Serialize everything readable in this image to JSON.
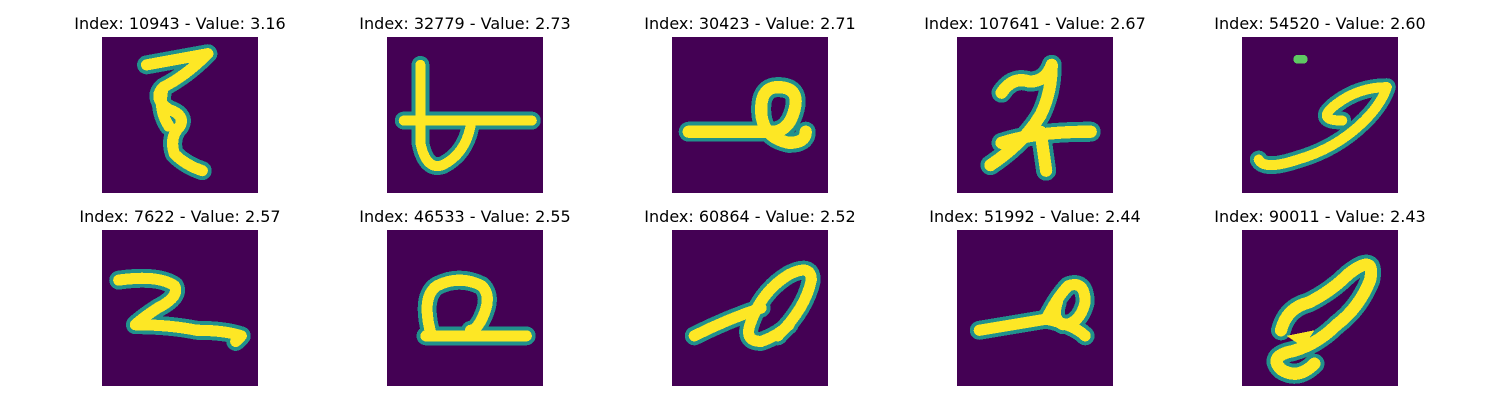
{
  "figure": {
    "background": "#ffffff",
    "image_background": "#440154",
    "stroke_colors": [
      "#21918c",
      "#5ec962",
      "#fde725"
    ],
    "panels": [
      {
        "title": "Index: 10943 - Value: 3.16",
        "glyph": "squiggle-digit-like"
      },
      {
        "title": "Index: 32779 - Value: 2.73",
        "glyph": "crossed-loop-digit-like"
      },
      {
        "title": "Index: 30423 - Value: 2.71",
        "glyph": "loop-with-tail"
      },
      {
        "title": "Index: 107641 - Value: 2.67",
        "glyph": "seven-like"
      },
      {
        "title": "Index: 54520 - Value: 2.60",
        "glyph": "swoosh-with-dot"
      },
      {
        "title": "Index: 7622 - Value: 2.57",
        "glyph": "two-like"
      },
      {
        "title": "Index: 46533 - Value: 2.55",
        "glyph": "loop-on-baseline"
      },
      {
        "title": "Index: 60864 - Value: 2.52",
        "glyph": "slanted-loop"
      },
      {
        "title": "Index: 51992 - Value: 2.44",
        "glyph": "loop-with-tail"
      },
      {
        "title": "Index: 90011 - Value: 2.43",
        "glyph": "slanted-loop-curl"
      }
    ]
  }
}
